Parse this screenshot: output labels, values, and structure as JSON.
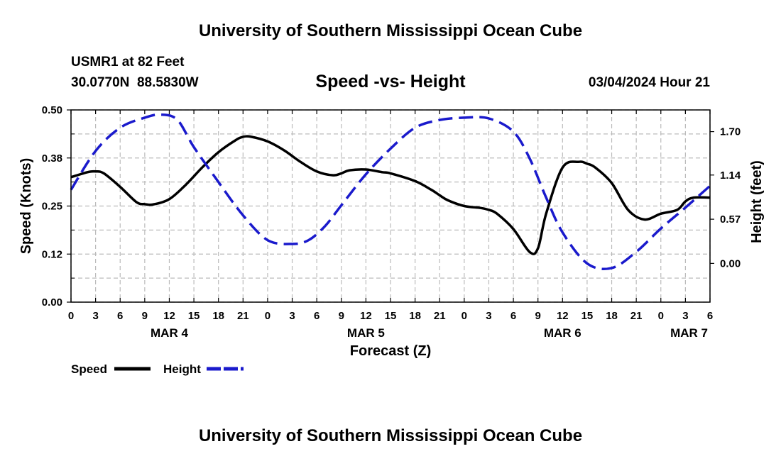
{
  "header": {
    "title": "University of Southern Mississippi Ocean Cube",
    "station": "USMR1 at 82 Feet",
    "coords": "30.0770N  88.5830W",
    "subtitle": "Speed -vs- Height",
    "datetime": "03/04/2024 Hour 21"
  },
  "footer": {
    "title": "University of Southern Mississippi Ocean Cube"
  },
  "colors": {
    "speed": "#000000",
    "height": "#1a1acc",
    "grid": "#bbbbbb"
  },
  "chart_data": {
    "type": "line",
    "xlabel": "Forecast (Z)",
    "ylabel_left": "Speed (Knots)",
    "ylabel_right": "Height (feet)",
    "x_unit": "hours from 00Z MAR 4",
    "xlim": [
      0,
      78
    ],
    "x_ticks": [
      0,
      3,
      6,
      9,
      12,
      15,
      18,
      21,
      24,
      27,
      30,
      33,
      36,
      39,
      42,
      45,
      48,
      51,
      54,
      57,
      60,
      63,
      66,
      69,
      72,
      75,
      78
    ],
    "x_tick_labels": [
      "0",
      "3",
      "6",
      "9",
      "12",
      "15",
      "18",
      "21",
      "0",
      "3",
      "6",
      "9",
      "12",
      "15",
      "18",
      "21",
      "0",
      "3",
      "6",
      "9",
      "12",
      "15",
      "18",
      "21",
      "0",
      "3",
      "6"
    ],
    "day_labels": [
      {
        "x": 12,
        "label": "MAR 4"
      },
      {
        "x": 36,
        "label": "MAR 5"
      },
      {
        "x": 60,
        "label": "MAR 6"
      },
      {
        "x": 78,
        "label": "MAR 7"
      }
    ],
    "ylim_left": [
      0,
      0.5
    ],
    "y_ticks_left": [
      0,
      0.125,
      0.25,
      0.375,
      0.5
    ],
    "y_tick_labels_left": [
      "0.00",
      "0.12",
      "0.25",
      "0.38",
      "0.50"
    ],
    "ylim_right": [
      -0.5,
      1.98
    ],
    "y_ticks_right": [
      0,
      0.57,
      1.14,
      1.7
    ],
    "y_tick_labels_right": [
      "0.00",
      "0.57",
      "1.14",
      "1.70"
    ],
    "series": [
      {
        "name": "Speed",
        "axis": "left",
        "style": "solid",
        "x": [
          0,
          2,
          3,
          4,
          6,
          8,
          9,
          10,
          12,
          14,
          16,
          18,
          20,
          21,
          22,
          24,
          26,
          28,
          30,
          32,
          33,
          34,
          36,
          38,
          39,
          42,
          44,
          45,
          46,
          48,
          50,
          51,
          52,
          54,
          56,
          57,
          58,
          60,
          62,
          63,
          64,
          66,
          68,
          70,
          72,
          74,
          75,
          76,
          78
        ],
        "y": [
          0.325,
          0.338,
          0.34,
          0.335,
          0.3,
          0.26,
          0.255,
          0.254,
          0.268,
          0.305,
          0.35,
          0.39,
          0.42,
          0.43,
          0.43,
          0.418,
          0.395,
          0.365,
          0.34,
          0.33,
          0.335,
          0.343,
          0.345,
          0.338,
          0.335,
          0.315,
          0.292,
          0.278,
          0.265,
          0.25,
          0.245,
          0.24,
          0.23,
          0.19,
          0.13,
          0.14,
          0.23,
          0.35,
          0.365,
          0.36,
          0.35,
          0.31,
          0.24,
          0.215,
          0.23,
          0.24,
          0.262,
          0.272,
          0.272
        ]
      },
      {
        "name": "Height",
        "axis": "right",
        "style": "dashed",
        "x": [
          0,
          3,
          6,
          9,
          11,
          13,
          15,
          18,
          21,
          24,
          27,
          29,
          31,
          33,
          36,
          39,
          42,
          45,
          48,
          51,
          54,
          56,
          58,
          60,
          63,
          66,
          69,
          72,
          75,
          78
        ],
        "y": [
          0.95,
          1.45,
          1.75,
          1.88,
          1.92,
          1.85,
          1.5,
          1.05,
          0.62,
          0.3,
          0.25,
          0.3,
          0.48,
          0.75,
          1.15,
          1.48,
          1.75,
          1.85,
          1.88,
          1.87,
          1.7,
          1.35,
          0.85,
          0.4,
          0.0,
          -0.06,
          0.15,
          0.45,
          0.72,
          1.0
        ]
      }
    ],
    "legend": {
      "placement": "bottom-left",
      "entries": [
        "Speed",
        "Height"
      ]
    }
  }
}
